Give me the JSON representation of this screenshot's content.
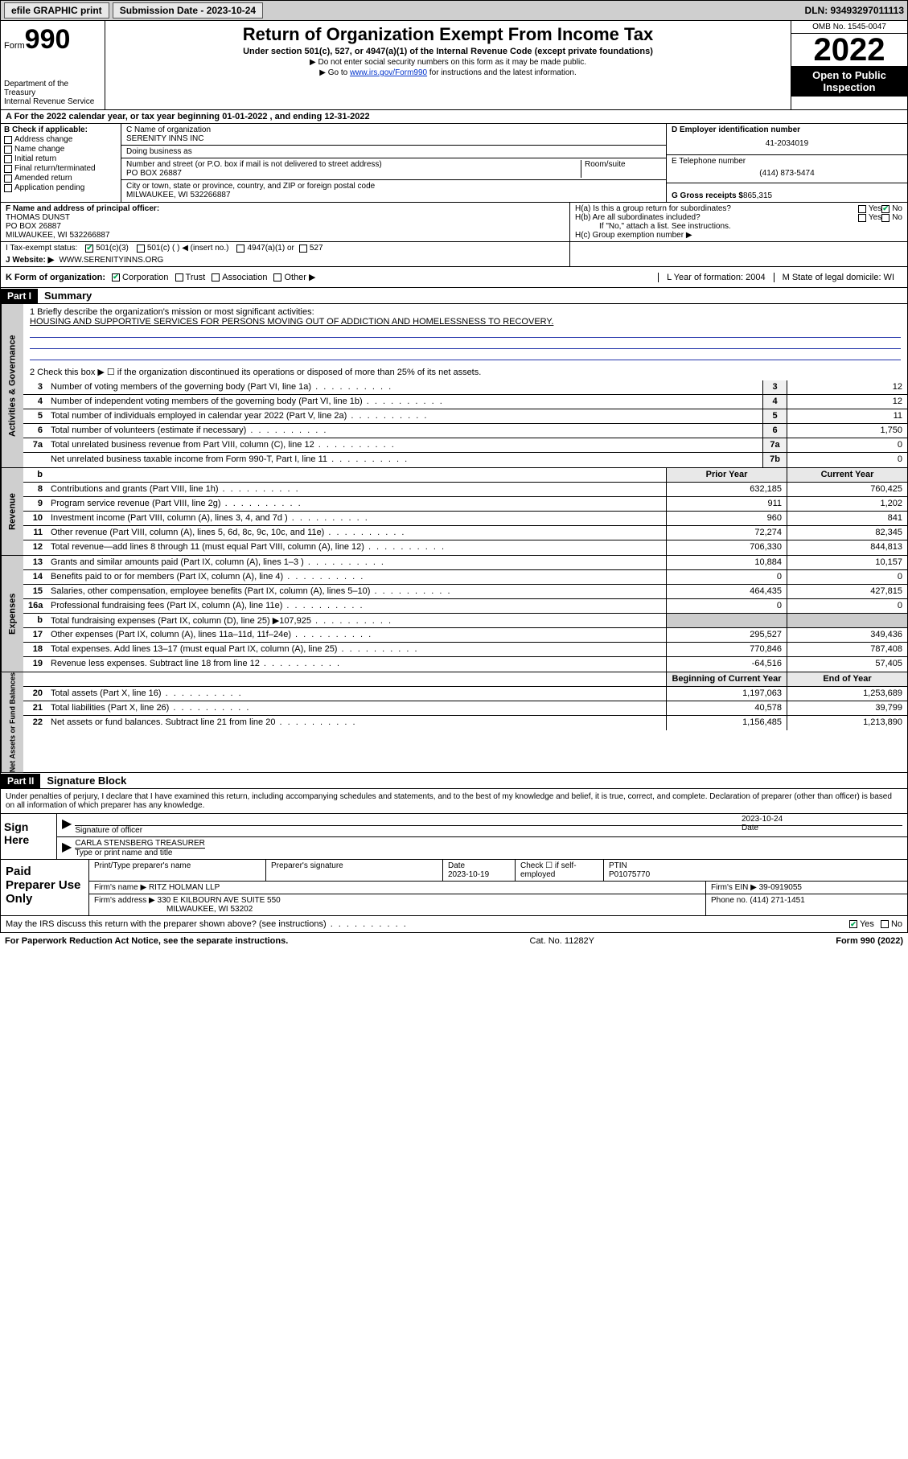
{
  "topbar": {
    "efile": "efile GRAPHIC print",
    "submission_label": "Submission Date - 2023-10-24",
    "dln": "DLN: 93493297011113"
  },
  "header": {
    "form_word": "Form",
    "form_num": "990",
    "dept": "Department of the Treasury\nInternal Revenue Service",
    "title": "Return of Organization Exempt From Income Tax",
    "sub": "Under section 501(c), 527, or 4947(a)(1) of the Internal Revenue Code (except private foundations)",
    "note1": "▶ Do not enter social security numbers on this form as it may be made public.",
    "note2_pre": "▶ Go to ",
    "note2_link": "www.irs.gov/Form990",
    "note2_post": " for instructions and the latest information.",
    "omb": "OMB No. 1545-0047",
    "year": "2022",
    "open": "Open to Public Inspection"
  },
  "row_a": "A  For the 2022 calendar year, or tax year beginning 01-01-2022    , and ending 12-31-2022",
  "col_b": {
    "hdr": "B Check if applicable:",
    "items": [
      "Address change",
      "Name change",
      "Initial return",
      "Final return/terminated",
      "Amended return",
      "Application pending"
    ]
  },
  "col_c": {
    "name_lbl": "C Name of organization",
    "name": "SERENITY INNS INC",
    "dba_lbl": "Doing business as",
    "dba": "",
    "addr_lbl": "Number and street (or P.O. box if mail is not delivered to street address)",
    "room_lbl": "Room/suite",
    "addr": "PO BOX 26887",
    "city_lbl": "City or town, state or province, country, and ZIP or foreign postal code",
    "city": "MILWAUKEE, WI  532266887"
  },
  "col_d": {
    "ein_lbl": "D Employer identification number",
    "ein": "41-2034019",
    "tel_lbl": "E Telephone number",
    "tel": "(414) 873-5474",
    "gross_lbl": "G Gross receipts $",
    "gross": "865,315"
  },
  "row_f": {
    "lbl": "F  Name and address of principal officer:",
    "name": "THOMAS DUNST",
    "addr1": "PO BOX 26887",
    "addr2": "MILWAUKEE, WI  532266887"
  },
  "row_h": {
    "a": "H(a)  Is this a group return for subordinates?",
    "a_yes": "Yes",
    "a_no": "No",
    "b": "H(b)  Are all subordinates included?",
    "b_yes": "Yes",
    "b_no": "No",
    "b_note": "If \"No,\" attach a list. See instructions.",
    "c": "H(c)  Group exemption number ▶"
  },
  "row_i": {
    "lbl": "I    Tax-exempt status:",
    "c3": "501(c)(3)",
    "c": "501(c) (   ) ◀ (insert no.)",
    "a1": "4947(a)(1) or",
    "527": "527"
  },
  "row_j": {
    "lbl": "J    Website: ▶",
    "val": "WWW.SERENITYINNS.ORG"
  },
  "row_k": {
    "lbl": "K Form of organization:",
    "corp": "Corporation",
    "trust": "Trust",
    "assoc": "Association",
    "other": "Other ▶",
    "l": "L Year of formation: 2004",
    "m": "M State of legal domicile: WI"
  },
  "part1": {
    "hdr": "Part I",
    "title": "Summary"
  },
  "mission_lbl": "1   Briefly describe the organization's mission or most significant activities:",
  "mission": "HOUSING AND SUPPORTIVE SERVICES FOR PERSONS MOVING OUT OF ADDICTION AND HOMELESSNESS TO RECOVERY.",
  "line2": "2   Check this box ▶ ☐  if the organization discontinued its operations or disposed of more than 25% of its net assets.",
  "sections": {
    "governance": {
      "label": "Activities & Governance",
      "rows": [
        {
          "n": "3",
          "d": "Number of voting members of the governing body (Part VI, line 1a)",
          "box": "3",
          "v": "12"
        },
        {
          "n": "4",
          "d": "Number of independent voting members of the governing body (Part VI, line 1b)",
          "box": "4",
          "v": "12"
        },
        {
          "n": "5",
          "d": "Total number of individuals employed in calendar year 2022 (Part V, line 2a)",
          "box": "5",
          "v": "11"
        },
        {
          "n": "6",
          "d": "Total number of volunteers (estimate if necessary)",
          "box": "6",
          "v": "1,750"
        },
        {
          "n": "7a",
          "d": "Total unrelated business revenue from Part VIII, column (C), line 12",
          "box": "7a",
          "v": "0"
        },
        {
          "n": "",
          "d": "Net unrelated business taxable income from Form 990-T, Part I, line 11",
          "box": "7b",
          "v": "0"
        }
      ]
    },
    "cols": {
      "prior": "Prior Year",
      "current": "Current Year"
    },
    "revenue": {
      "label": "Revenue",
      "rows": [
        {
          "n": "8",
          "d": "Contributions and grants (Part VIII, line 1h)",
          "p": "632,185",
          "c": "760,425"
        },
        {
          "n": "9",
          "d": "Program service revenue (Part VIII, line 2g)",
          "p": "911",
          "c": "1,202"
        },
        {
          "n": "10",
          "d": "Investment income (Part VIII, column (A), lines 3, 4, and 7d )",
          "p": "960",
          "c": "841"
        },
        {
          "n": "11",
          "d": "Other revenue (Part VIII, column (A), lines 5, 6d, 8c, 9c, 10c, and 11e)",
          "p": "72,274",
          "c": "82,345"
        },
        {
          "n": "12",
          "d": "Total revenue—add lines 8 through 11 (must equal Part VIII, column (A), line 12)",
          "p": "706,330",
          "c": "844,813"
        }
      ]
    },
    "expenses": {
      "label": "Expenses",
      "rows": [
        {
          "n": "13",
          "d": "Grants and similar amounts paid (Part IX, column (A), lines 1–3 )",
          "p": "10,884",
          "c": "10,157"
        },
        {
          "n": "14",
          "d": "Benefits paid to or for members (Part IX, column (A), line 4)",
          "p": "0",
          "c": "0"
        },
        {
          "n": "15",
          "d": "Salaries, other compensation, employee benefits (Part IX, column (A), lines 5–10)",
          "p": "464,435",
          "c": "427,815"
        },
        {
          "n": "16a",
          "d": "Professional fundraising fees (Part IX, column (A), line 11e)",
          "p": "0",
          "c": "0"
        },
        {
          "n": "b",
          "d": "Total fundraising expenses (Part IX, column (D), line 25) ▶107,925",
          "p": "",
          "c": ""
        },
        {
          "n": "17",
          "d": "Other expenses (Part IX, column (A), lines 11a–11d, 11f–24e)",
          "p": "295,527",
          "c": "349,436"
        },
        {
          "n": "18",
          "d": "Total expenses. Add lines 13–17 (must equal Part IX, column (A), line 25)",
          "p": "770,846",
          "c": "787,408"
        },
        {
          "n": "19",
          "d": "Revenue less expenses. Subtract line 18 from line 12",
          "p": "-64,516",
          "c": "57,405"
        }
      ]
    },
    "cols2": {
      "prior": "Beginning of Current Year",
      "current": "End of Year"
    },
    "net": {
      "label": "Net Assets or Fund Balances",
      "rows": [
        {
          "n": "20",
          "d": "Total assets (Part X, line 16)",
          "p": "1,197,063",
          "c": "1,253,689"
        },
        {
          "n": "21",
          "d": "Total liabilities (Part X, line 26)",
          "p": "40,578",
          "c": "39,799"
        },
        {
          "n": "22",
          "d": "Net assets or fund balances. Subtract line 21 from line 20",
          "p": "1,156,485",
          "c": "1,213,890"
        }
      ]
    }
  },
  "part2": {
    "hdr": "Part II",
    "title": "Signature Block"
  },
  "sig": {
    "decl": "Under penalties of perjury, I declare that I have examined this return, including accompanying schedules and statements, and to the best of my knowledge and belief, it is true, correct, and complete. Declaration of preparer (other than officer) is based on all information of which preparer has any knowledge.",
    "sign_here": "Sign Here",
    "officer_lbl": "Signature of officer",
    "date_lbl": "Date",
    "date": "2023-10-24",
    "name": "CARLA STENSBERG TREASURER",
    "name_lbl": "Type or print name and title"
  },
  "paid": {
    "hdr": "Paid Preparer Use Only",
    "r1": {
      "a": "Print/Type preparer's name",
      "b": "Preparer's signature",
      "c": "Date",
      "cv": "2023-10-19",
      "d": "Check ☐ if self-employed",
      "e": "PTIN",
      "ev": "P01075770"
    },
    "r2": {
      "a": "Firm's name    ▶",
      "av": "RITZ HOLMAN LLP",
      "b": "Firm's EIN ▶",
      "bv": "39-0919055"
    },
    "r3": {
      "a": "Firm's address ▶",
      "av": "330 E KILBOURN AVE SUITE 550",
      "b": "Phone no.",
      "bv": "(414) 271-1451"
    },
    "r3b": "MILWAUKEE, WI  53202"
  },
  "footer": {
    "q": "May the IRS discuss this return with the preparer shown above? (see instructions)",
    "yes": "Yes",
    "no": "No"
  },
  "bottom": {
    "left": "For Paperwork Reduction Act Notice, see the separate instructions.",
    "mid": "Cat. No. 11282Y",
    "right": "Form 990 (2022)"
  }
}
